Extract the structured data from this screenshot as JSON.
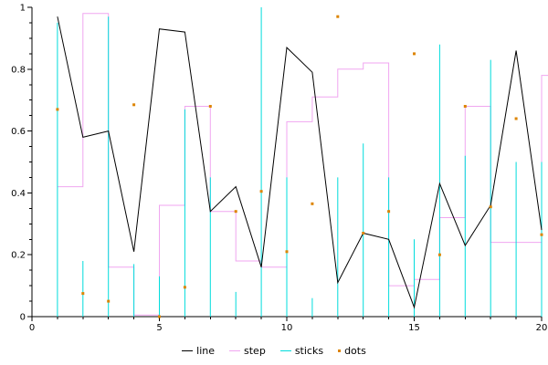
{
  "window": {
    "background": "#ffffff"
  },
  "chart_data": {
    "type": "line",
    "title": "",
    "xlabel": "",
    "ylabel": "",
    "grid": false,
    "legend_position": "bottom",
    "axis_color": "#000000",
    "xlim": [
      0,
      20
    ],
    "ylim": [
      0,
      1
    ],
    "x_ticks": [
      0,
      5,
      10,
      15,
      20
    ],
    "x_tick_labels": [
      "0",
      "5",
      "10",
      "15",
      "20"
    ],
    "x_minor_step": 1,
    "y_ticks": [
      0,
      0.2,
      0.4,
      0.6,
      0.8,
      1
    ],
    "y_tick_labels": [
      "0",
      "0.2",
      "0.4",
      "0.6",
      "0.8",
      "1"
    ],
    "y_minor_step": 0.05,
    "step_end_cap": 0.25,
    "x": [
      1,
      2,
      3,
      4,
      5,
      6,
      7,
      8,
      9,
      10,
      11,
      12,
      13,
      14,
      15,
      16,
      17,
      18,
      19,
      20
    ],
    "series": [
      {
        "name": "line",
        "type": "line",
        "color": "#000000",
        "values": [
          0.97,
          0.58,
          0.6,
          0.21,
          0.93,
          0.92,
          0.34,
          0.42,
          0.16,
          0.87,
          0.79,
          0.11,
          0.27,
          0.25,
          0.03,
          0.43,
          0.23,
          0.36,
          0.86,
          0.28
        ]
      },
      {
        "name": "step",
        "type": "step",
        "color": "#f0a6f0",
        "values": [
          0.42,
          0.98,
          0.16,
          0.005,
          0.36,
          0.68,
          0.34,
          0.18,
          0.16,
          0.63,
          0.71,
          0.8,
          0.82,
          0.1,
          0.12,
          0.32,
          0.68,
          0.24,
          0.24,
          0.78
        ]
      },
      {
        "name": "sticks",
        "type": "sticks",
        "color": "#00dcdc",
        "values": [
          0.95,
          0.18,
          0.97,
          0.17,
          0.13,
          0.67,
          0.45,
          0.08,
          1.0,
          0.45,
          0.06,
          0.45,
          0.56,
          0.45,
          0.25,
          0.88,
          0.52,
          0.83,
          0.5,
          0.5
        ]
      },
      {
        "name": "dots",
        "type": "dots",
        "color": "#dd8400",
        "values": [
          0.67,
          0.075,
          0.05,
          0.685,
          0.0,
          0.095,
          0.68,
          0.34,
          0.405,
          0.21,
          0.365,
          0.97,
          0.27,
          0.34,
          0.85,
          0.2,
          0.68,
          0.355,
          0.64,
          0.265
        ]
      }
    ]
  }
}
